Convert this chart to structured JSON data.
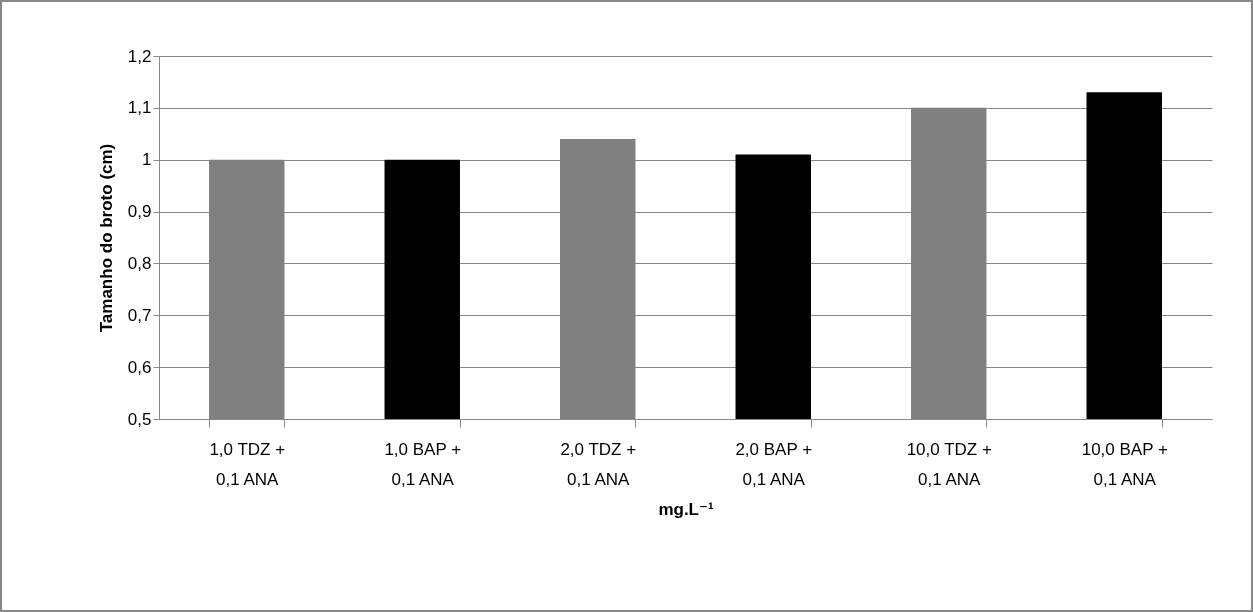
{
  "chart_data": {
    "type": "bar",
    "categories": [
      "1,0 TDZ + 0,1 ANA",
      "1,0 BAP + 0,1 ANA",
      "2,0 TDZ + 0,1 ANA",
      "2,0 BAP + 0,1 ANA",
      "10,0 TDZ + 0,1 ANA",
      "10,0 BAP + 0,1 ANA"
    ],
    "values": [
      1.0,
      1.0,
      1.04,
      1.01,
      1.1,
      1.13
    ],
    "colors": [
      "#808080",
      "#000000",
      "#808080",
      "#000000",
      "#808080",
      "#000000"
    ],
    "xlabel": "mg.L⁻¹",
    "ylabel": "Tamanho do broto  (cm)",
    "ylim": [
      0.5,
      1.2
    ],
    "yticks": [
      {
        "value": 0.5,
        "label": "0,5"
      },
      {
        "value": 0.6,
        "label": "0,6"
      },
      {
        "value": 0.7,
        "label": "0,7"
      },
      {
        "value": 0.8,
        "label": "0,8"
      },
      {
        "value": 0.9,
        "label": "0,9"
      },
      1,
      {
        "value": 1.1,
        "label": "1,1"
      },
      {
        "value": 1.2,
        "label": "1,2"
      }
    ],
    "grid": "y"
  }
}
